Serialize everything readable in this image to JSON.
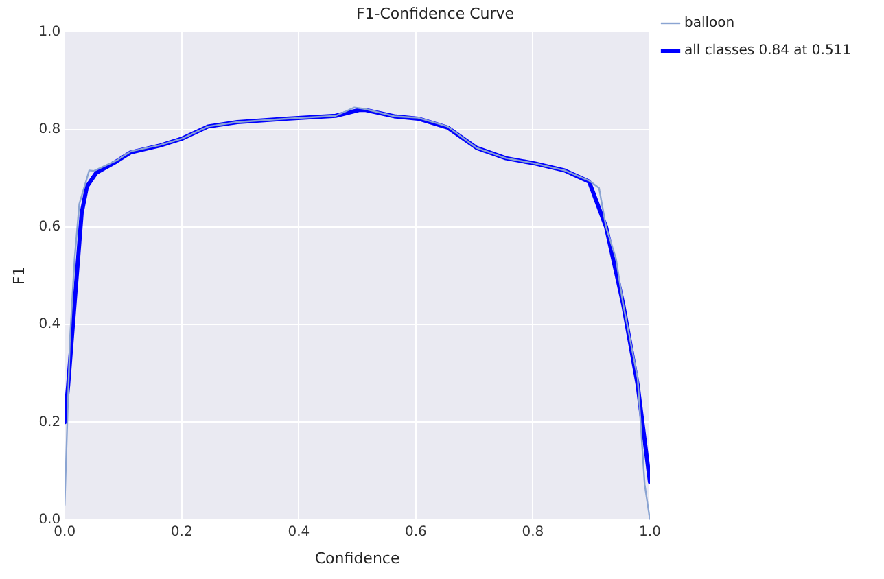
{
  "chart_data": {
    "type": "line",
    "title": "F1-Confidence Curve",
    "xlabel": "Confidence",
    "ylabel": "F1",
    "xlim": [
      0,
      1
    ],
    "ylim": [
      0,
      1
    ],
    "xticks": [
      {
        "value": 0,
        "label": "0.0"
      },
      0.2,
      0.4,
      0.6,
      0.8,
      {
        "value": 1,
        "label": "1.0"
      }
    ],
    "yticks": [
      {
        "value": 0,
        "label": "0.0"
      },
      0.2,
      0.4,
      0.6,
      0.8,
      {
        "value": 1,
        "label": "1.0"
      }
    ],
    "grid": true,
    "legend": "top right",
    "marker": "none",
    "line_style": "solid",
    "series": [
      {
        "name": "balloon",
        "color": "#8aa4d2",
        "x": [
          0,
          0.009,
          0.017,
          0.025,
          0.042,
          0.05,
          0.088,
          0.113,
          0.163,
          0.2,
          0.245,
          0.295,
          0.379,
          0.463,
          0.495,
          0.513,
          0.563,
          0.604,
          0.654,
          0.704,
          0.754,
          0.804,
          0.854,
          0.896,
          0.913,
          0.925,
          0.942,
          0.954,
          0.979,
          0.991,
          1
        ],
        "values": [
          0.03,
          0.37,
          0.535,
          0.647,
          0.716,
          0.715,
          0.736,
          0.755,
          0.768,
          0.781,
          0.806,
          0.815,
          0.822,
          0.828,
          0.845,
          0.842,
          0.827,
          0.824,
          0.806,
          0.762,
          0.741,
          0.73,
          0.716,
          0.695,
          0.68,
          0.6,
          0.535,
          0.443,
          0.29,
          0.072,
          0.0
        ]
      },
      {
        "name": "all classes 0.84 at 0.511",
        "color": "#0000ff",
        "x": [
          0,
          0.006,
          0.029,
          0.038,
          0.054,
          0.088,
          0.113,
          0.163,
          0.2,
          0.245,
          0.295,
          0.379,
          0.463,
          0.504,
          0.513,
          0.563,
          0.604,
          0.654,
          0.704,
          0.754,
          0.804,
          0.854,
          0.896,
          0.925,
          0.954,
          0.979,
          1
        ],
        "values": [
          0.2,
          0.276,
          0.628,
          0.683,
          0.711,
          0.734,
          0.753,
          0.767,
          0.781,
          0.806,
          0.815,
          0.822,
          0.828,
          0.84,
          0.84,
          0.827,
          0.822,
          0.804,
          0.762,
          0.741,
          0.73,
          0.716,
          0.693,
          0.6,
          0.443,
          0.276,
          0.077
        ]
      }
    ]
  }
}
